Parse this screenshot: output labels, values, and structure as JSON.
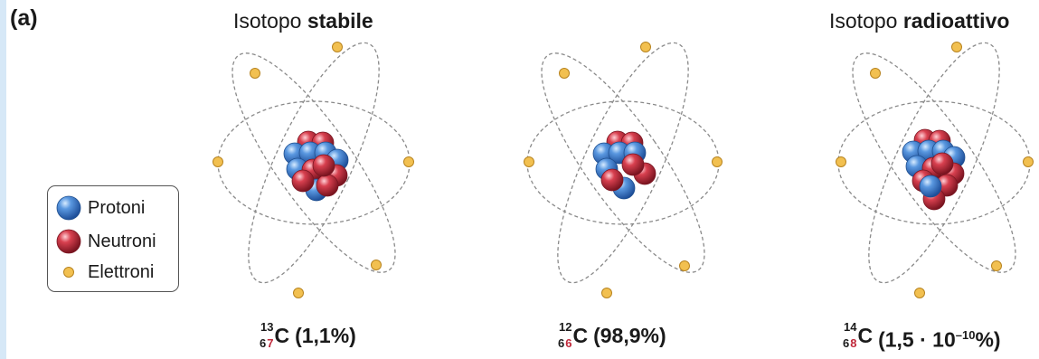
{
  "panel_label": "(a)",
  "headings": [
    {
      "prefix": "Isotopo ",
      "bold": "stabile"
    },
    {
      "prefix": "Isotopo ",
      "bold": "radioattivo"
    }
  ],
  "legend": {
    "items": [
      {
        "label": "Protoni",
        "kind": "proton"
      },
      {
        "label": "Neutroni",
        "kind": "neutron"
      },
      {
        "label": "Elettroni",
        "kind": "electron"
      }
    ]
  },
  "colors": {
    "proton": "#3a78c8",
    "neutron": "#c42d3f",
    "electron": "#f2c050",
    "orbit": "#8a8a8a",
    "neutron_number": "#c0283a"
  },
  "atoms": [
    {
      "name": "carbon-13",
      "mass": "13",
      "atomic_number": "6",
      "neutron_count": "7",
      "symbol": "C",
      "abundance": "(1,1%)",
      "abundance_exp": "",
      "abundance_tail": ""
    },
    {
      "name": "carbon-12",
      "mass": "12",
      "atomic_number": "6",
      "neutron_count": "6",
      "symbol": "C",
      "abundance": "(98,9%)",
      "abundance_exp": "",
      "abundance_tail": ""
    },
    {
      "name": "carbon-14",
      "mass": "14",
      "atomic_number": "6",
      "neutron_count": "8",
      "symbol": "C",
      "abundance": "(1,5 · 10",
      "abundance_exp": "–10",
      "abundance_tail": "%)"
    }
  ]
}
